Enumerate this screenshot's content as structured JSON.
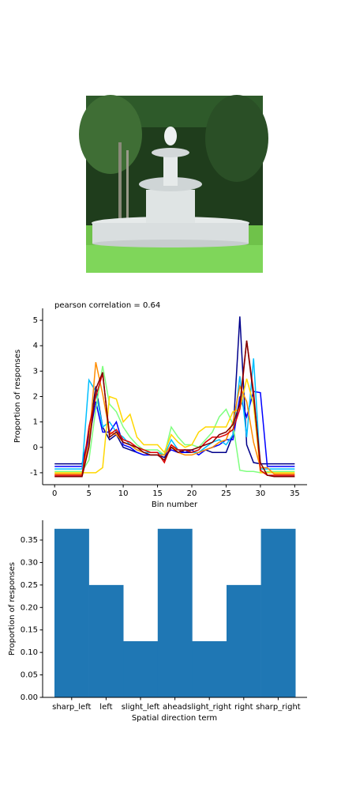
{
  "chart_data": [
    {
      "type": "line",
      "title": "pearson correlation = 0.64",
      "xlabel": "Bin number",
      "ylabel": "Proportion of responses",
      "x": [
        0,
        1,
        2,
        3,
        4,
        5,
        6,
        7,
        8,
        9,
        10,
        11,
        12,
        13,
        14,
        15,
        16,
        17,
        18,
        19,
        20,
        21,
        22,
        23,
        24,
        25,
        26,
        27,
        28,
        29,
        30,
        31,
        32,
        33,
        34,
        35
      ],
      "xlim": [
        -1.75,
        36.8
      ],
      "xticks": [
        0,
        5,
        10,
        15,
        20,
        25,
        30,
        35
      ],
      "ylim": [
        -1.47,
        5.47
      ],
      "yticks": [
        -1,
        0,
        1,
        2,
        3,
        4,
        5
      ],
      "series": [
        {
          "color": "#00008b",
          "values": [
            -0.65,
            -0.65,
            -0.65,
            -0.65,
            -0.65,
            0.5,
            2.4,
            0.8,
            0.3,
            0.5,
            0,
            -0.1,
            -0.2,
            -0.3,
            -0.3,
            -0.3,
            -0.4,
            0,
            -0.1,
            -0.2,
            -0.2,
            -0.2,
            -0.1,
            -0.2,
            -0.2,
            -0.2,
            0.5,
            5.15,
            0.1,
            -0.6,
            -0.65,
            -0.65,
            -0.65,
            -0.65,
            -0.65,
            -0.65
          ]
        },
        {
          "color": "#0000ff",
          "values": [
            -0.75,
            -0.75,
            -0.75,
            -0.75,
            -0.75,
            0.3,
            1.8,
            0.6,
            0.6,
            1,
            0.1,
            0,
            -0.2,
            -0.3,
            -0.3,
            -0.3,
            -0.3,
            -0.1,
            -0.2,
            -0.2,
            -0.1,
            -0.3,
            -0.1,
            0,
            0.1,
            0.3,
            0.3,
            2.0,
            1.2,
            2.2,
            2.15,
            -0.75,
            -0.75,
            -0.75,
            -0.75,
            -0.75
          ]
        },
        {
          "color": "#00bfff",
          "values": [
            -0.85,
            -0.85,
            -0.85,
            -0.85,
            -0.85,
            2.65,
            2.2,
            0.8,
            1.0,
            0.6,
            0.4,
            0.1,
            -0.1,
            -0.2,
            -0.2,
            -0.2,
            -0.3,
            0.3,
            -0.1,
            -0.1,
            -0.2,
            -0.2,
            0,
            0.2,
            0.3,
            0.1,
            0.5,
            2.8,
            0.4,
            3.5,
            -0.85,
            -0.85,
            -0.85,
            -0.85,
            -0.85,
            -0.85
          ]
        },
        {
          "color": "#7fff7f",
          "values": [
            -0.95,
            -0.95,
            -0.95,
            -0.95,
            -0.95,
            -0.5,
            1.5,
            3.2,
            1.7,
            1.4,
            0.8,
            0.4,
            0.1,
            -0.1,
            -0.1,
            -0.1,
            -0.3,
            0.8,
            0.4,
            0.1,
            0.1,
            0,
            0.3,
            0.6,
            1.2,
            1.5,
            0.9,
            -0.9,
            -0.95,
            -0.95,
            -1.0,
            -0.95,
            -0.95,
            -0.95,
            -0.95,
            -0.95
          ]
        },
        {
          "color": "#ffd700",
          "values": [
            -1.0,
            -1.0,
            -1.0,
            -1.0,
            -1.0,
            -1.0,
            -1.0,
            -0.8,
            2.0,
            1.9,
            1.0,
            1.3,
            0.4,
            0.1,
            0.1,
            0.1,
            -0.2,
            0.5,
            0.2,
            0,
            0.1,
            0.6,
            0.8,
            0.8,
            0.8,
            0.8,
            1.4,
            1.5,
            2.7,
            1.7,
            -1.0,
            -1.0,
            -1.0,
            -1.0,
            -1.0,
            -1.0
          ]
        },
        {
          "color": "#ff8c00",
          "values": [
            -1.05,
            -1.05,
            -1.05,
            -1.05,
            -1.05,
            0.2,
            3.35,
            2.1,
            0.6,
            0.5,
            0.2,
            0.1,
            -0.1,
            -0.2,
            -0.3,
            -0.3,
            -0.3,
            0.1,
            -0.2,
            -0.3,
            -0.3,
            -0.2,
            -0.1,
            0,
            0.2,
            0.3,
            1.0,
            2.4,
            1.8,
            0.2,
            -0.8,
            -0.8,
            -1.05,
            -1.05,
            -1.05,
            -1.05
          ]
        },
        {
          "color": "#dd0000",
          "values": [
            -1.1,
            -1.1,
            -1.1,
            -1.1,
            -1.1,
            0.8,
            2.0,
            2.9,
            0.5,
            0.7,
            0.3,
            0.2,
            0,
            -0.1,
            -0.2,
            -0.2,
            -0.6,
            0.1,
            -0.1,
            -0.1,
            -0.2,
            -0.1,
            0.2,
            0.4,
            0.4,
            0.5,
            0.7,
            1.5,
            4.2,
            2.2,
            -0.9,
            -1.1,
            -1.1,
            -1.1,
            -1.1,
            -1.1
          ]
        },
        {
          "color": "#800000",
          "values": [
            -1.15,
            -1.15,
            -1.15,
            -1.15,
            -1.15,
            0,
            2.3,
            2.95,
            0.4,
            0.6,
            0.2,
            0.1,
            0,
            -0.2,
            -0.3,
            -0.3,
            -0.5,
            0,
            -0.2,
            -0.1,
            -0.1,
            0,
            0.1,
            0.2,
            0.5,
            0.6,
            0.9,
            1.7,
            4.2,
            2.0,
            -0.6,
            -1.1,
            -1.15,
            -1.15,
            -1.15,
            -1.15
          ]
        }
      ]
    },
    {
      "type": "bar",
      "xlabel": "Spatial direction term",
      "ylabel": "Proportion of responses",
      "categories": [
        "sharp_left",
        "left",
        "slight_left",
        "ahead",
        "slight_right",
        "right",
        "sharp_right"
      ],
      "values": [
        0.375,
        0.25,
        0.125,
        0.375,
        0.125,
        0.25,
        0.375
      ],
      "color": "#1f77b4",
      "ylim": [
        0,
        0.394
      ],
      "yticks": [
        {
          "value": 0,
          "label": "0.00"
        },
        {
          "value": 0.05,
          "label": "0.05"
        },
        {
          "value": 0.1,
          "label": "0.10"
        },
        {
          "value": 0.15,
          "label": "0.15"
        },
        {
          "value": 0.2,
          "label": "0.20"
        },
        {
          "value": 0.25,
          "label": "0.25"
        },
        {
          "value": 0.3,
          "label": "0.30"
        },
        {
          "value": 0.35,
          "label": "0.35"
        }
      ]
    }
  ]
}
